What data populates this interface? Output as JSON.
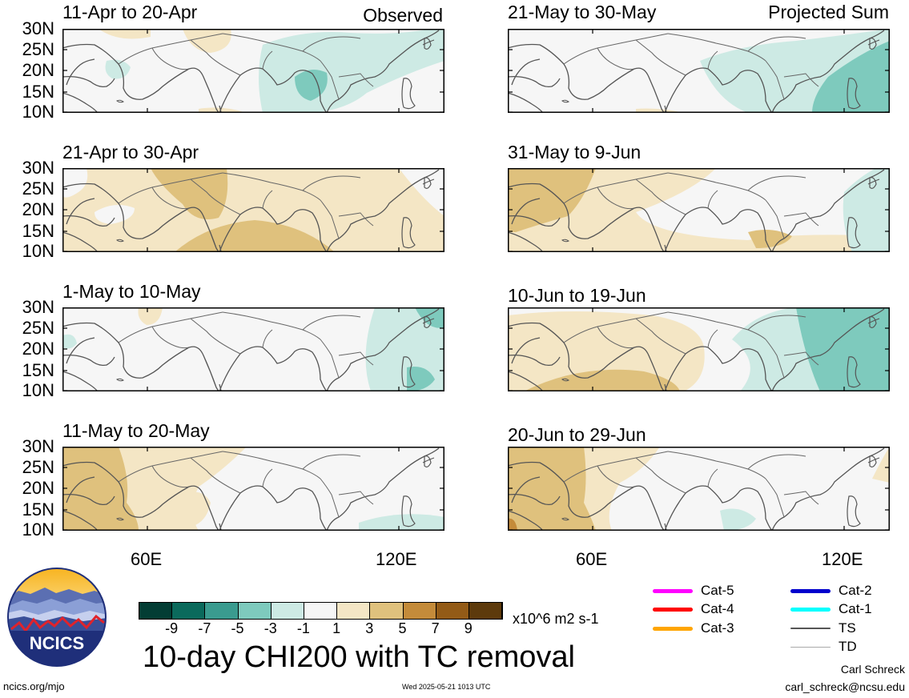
{
  "panels": [
    {
      "title": "11-Apr to 20-Apr",
      "corner": "Observed",
      "pattern": 0
    },
    {
      "title": "21-May to 30-May",
      "corner": "Projected Sum",
      "pattern": 4
    },
    {
      "title": "21-Apr to 30-Apr",
      "corner": "",
      "pattern": 1
    },
    {
      "title": "31-May to 9-Jun",
      "corner": "",
      "pattern": 5
    },
    {
      "title": "1-May to 10-May",
      "corner": "",
      "pattern": 2
    },
    {
      "title": "10-Jun to 19-Jun",
      "corner": "",
      "pattern": 6
    },
    {
      "title": "11-May to 20-May",
      "corner": "",
      "pattern": 3
    },
    {
      "title": "20-Jun to 29-Jun",
      "corner": "",
      "pattern": 7
    }
  ],
  "lat_labels": [
    "30N",
    "25N",
    "20N",
    "15N",
    "10N"
  ],
  "lon_labels": [
    "60E",
    "120E"
  ],
  "colorbar": {
    "colors": [
      "#033d34",
      "#0b6a5c",
      "#3a9b8f",
      "#7ecabd",
      "#cdeae4",
      "#f6f6f6",
      "#f4e6c5",
      "#dfc17d",
      "#c48b3a",
      "#935b17",
      "#5d3a0c"
    ],
    "tick_labels": [
      "-9",
      "-7",
      "-5",
      "-3",
      "-1",
      "1",
      "3",
      "5",
      "7",
      "9"
    ],
    "units": "x10^6 m2 s-1"
  },
  "title": "10-day CHI200 with TC removal",
  "logo_text": "NCICS",
  "footer": {
    "url": "ncics.org/mjo",
    "timestamp": "Wed 2025-05-21 1013 UTC",
    "author": "Carl Schreck",
    "email": "carl_schreck@ncsu.edu"
  },
  "tc_legend": [
    {
      "label": "Cat-5",
      "color": "#ff00ff",
      "style": "thick"
    },
    {
      "label": "Cat-4",
      "color": "#ff0000",
      "style": "thick"
    },
    {
      "label": "Cat-3",
      "color": "#ffa500",
      "style": "thick"
    },
    {
      "label": "Cat-2",
      "color": "#0000cd",
      "style": "thick"
    },
    {
      "label": "Cat-1",
      "color": "#00ffff",
      "style": "thick"
    },
    {
      "label": "TS",
      "color": "#555555",
      "style": "medium"
    },
    {
      "label": "TD",
      "color": "#aaaaaa",
      "style": "thin"
    }
  ]
}
